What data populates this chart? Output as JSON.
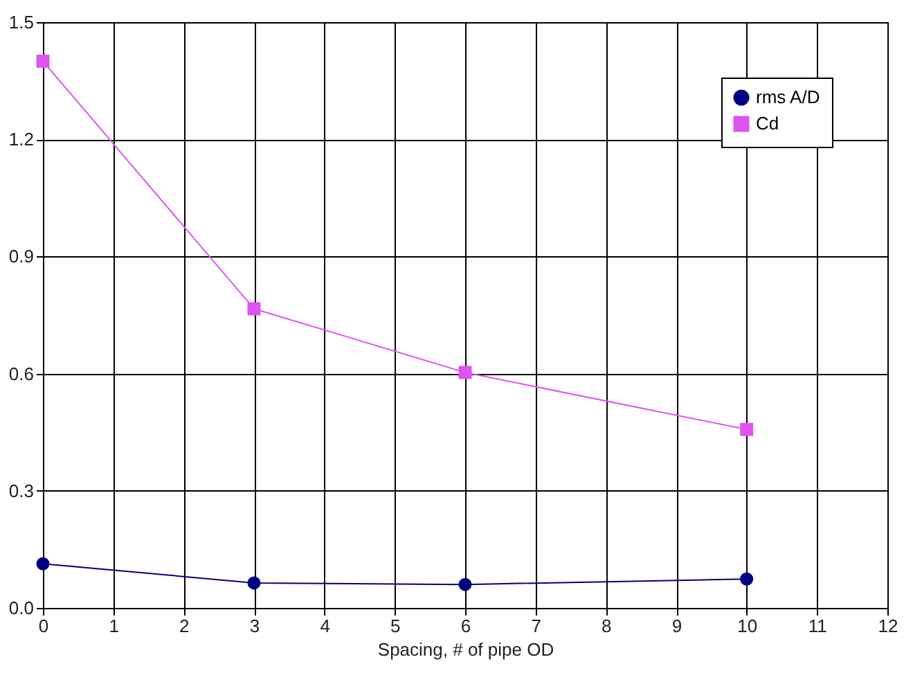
{
  "chart_data": {
    "type": "line",
    "xlabel": "Spacing, # of pipe OD",
    "x": [
      0,
      3,
      6,
      10
    ],
    "series": [
      {
        "name": "rms A/D",
        "color": "#000080",
        "values": [
          0.113,
          0.064,
          0.06,
          0.074
        ],
        "marker": "circle"
      },
      {
        "name": "Cd",
        "color": "#dd55ee",
        "values": [
          1.4,
          0.766,
          0.603,
          0.457
        ],
        "marker": "square"
      }
    ],
    "xlim": [
      0,
      12
    ],
    "xticks": [
      0,
      1,
      2,
      3,
      4,
      5,
      6,
      7,
      8,
      9,
      10,
      11,
      12
    ],
    "ylim": [
      0,
      1.5
    ],
    "yticks": [
      {
        "value": 0,
        "label": "0.0"
      },
      {
        "value": 0.3,
        "label": "0.3"
      },
      {
        "value": 0.6,
        "label": "0.6"
      },
      {
        "value": 0.9,
        "label": "0.9"
      },
      {
        "value": 1.2,
        "label": "1.2"
      },
      {
        "value": 1.5,
        "label": "1.5"
      }
    ],
    "grid": true,
    "legend": "top right",
    "line_style": "solid"
  }
}
